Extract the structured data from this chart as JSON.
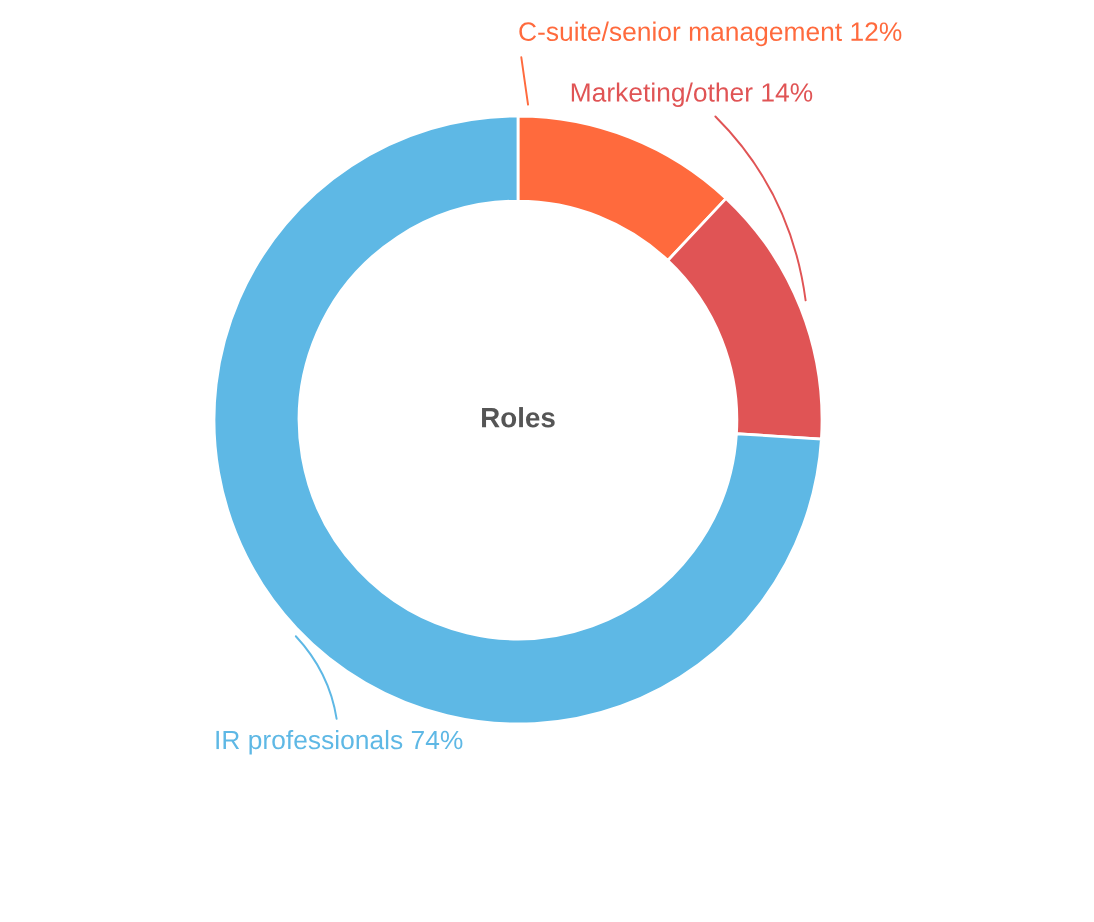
{
  "chart_data": {
    "type": "donut",
    "title": "Roles",
    "categories": [
      "C-suite/senior management",
      "Marketing/other",
      "IR professionals"
    ],
    "values": [
      12,
      14,
      74
    ],
    "value_labels": [
      "12%",
      "14%",
      "74%"
    ],
    "colors": [
      "#ff6a3d",
      "#e05455",
      "#5eb8e5"
    ],
    "legend": false
  }
}
